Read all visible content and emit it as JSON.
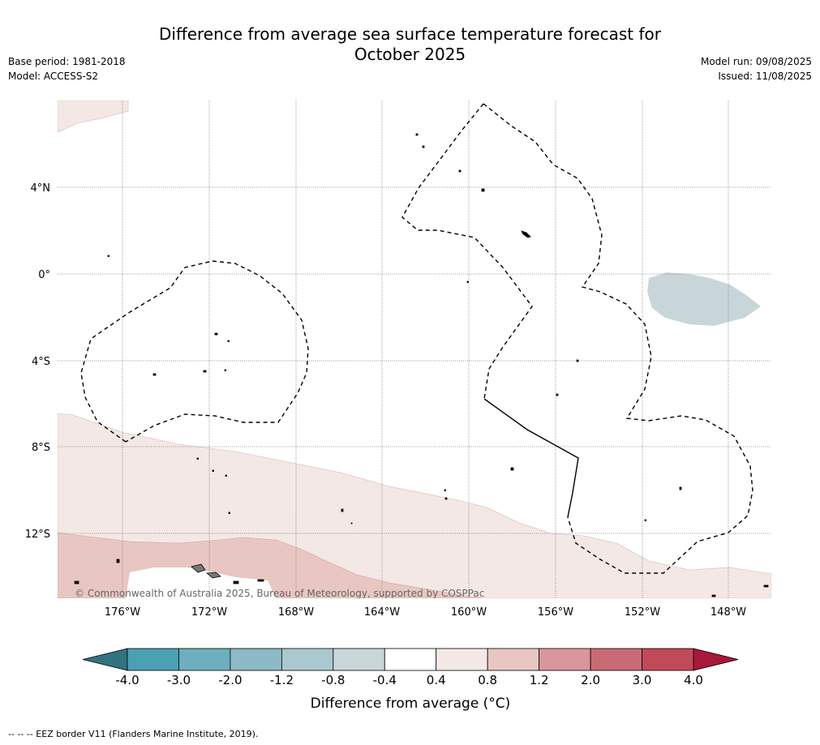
{
  "title": {
    "line1": "Difference from average sea surface temperature forecast for",
    "line2": "October 2025"
  },
  "meta_left": {
    "base_period": "Base period: 1981-2018",
    "model": "Model: ACCESS-S2"
  },
  "meta_right": {
    "model_run": "Model run: 09/08/2025",
    "issued": "Issued: 11/08/2025"
  },
  "map": {
    "lat_labels": [
      "4°N",
      "0°",
      "4°S",
      "8°S",
      "12°S"
    ],
    "lon_labels": [
      "176°W",
      "172°W",
      "168°W",
      "164°W",
      "160°W",
      "156°W",
      "152°W",
      "148°W"
    ],
    "copyright": "© Commonwealth of Australia 2025, Bureau of Meteorology, supported by COSPPac"
  },
  "colorbar": {
    "ticks": [
      "-4.0",
      "-3.0",
      "-2.0",
      "-1.2",
      "-0.8",
      "-0.4",
      "0.4",
      "0.8",
      "1.2",
      "2.0",
      "3.0",
      "4.0"
    ],
    "bin_colors": [
      "#4aa1b2",
      "#6eafbd",
      "#8dbac6",
      "#aac8cf",
      "#c8d6da",
      "#ffffff",
      "#f4e8e6",
      "#e8c7c2",
      "#d9969b",
      "#c96b74",
      "#c04a58"
    ],
    "under_color": "#2f7480",
    "over_color": "#a8183a",
    "label": "Difference from average (°C)"
  },
  "footnote": "--  --  -- EEZ border V11 (Flanders Marine Institute, 2019)."
}
